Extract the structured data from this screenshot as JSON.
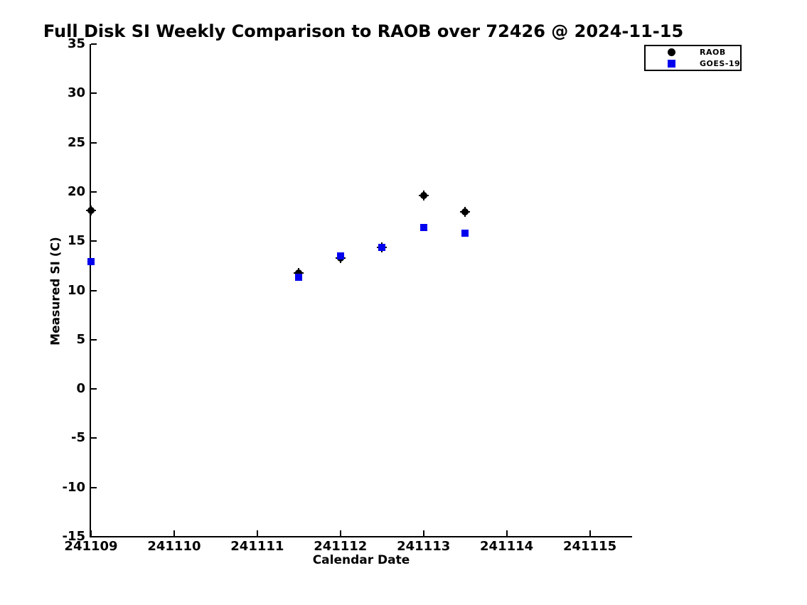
{
  "figure": {
    "background_color": "#ffffff",
    "text_color": "#000000"
  },
  "chart_data": {
    "type": "scatter",
    "title": "Full Disk SI Weekly Comparison to RAOB over 72426 @ 2024-11-15",
    "xlabel": "Calendar Date",
    "ylabel": "Measured SI (C)",
    "xlim": [
      241109,
      241115.5
    ],
    "ylim": [
      -15,
      35
    ],
    "xticks": [
      241109,
      241110,
      241111,
      241112,
      241113,
      241114,
      241115
    ],
    "yticks": [
      35,
      30,
      25,
      20,
      15,
      10,
      5,
      0,
      -5,
      -10,
      -15
    ],
    "grid": false,
    "legend_position": "top-right",
    "series": [
      {
        "name": "RAOB",
        "marker": "circle",
        "color": "#000000",
        "points": [
          [
            241109,
            18.1
          ],
          [
            241111.5,
            11.8
          ],
          [
            241112,
            13.3
          ],
          [
            241112.5,
            14.4
          ],
          [
            241113,
            19.6
          ],
          [
            241113.5,
            18.0
          ]
        ]
      },
      {
        "name": "GOES-19",
        "marker": "square",
        "color": "#0000ee",
        "points": [
          [
            241109,
            12.9
          ],
          [
            241111.5,
            11.3
          ],
          [
            241112,
            13.5
          ],
          [
            241112.5,
            14.4
          ],
          [
            241113,
            16.4
          ],
          [
            241113.5,
            15.8
          ]
        ]
      }
    ]
  }
}
